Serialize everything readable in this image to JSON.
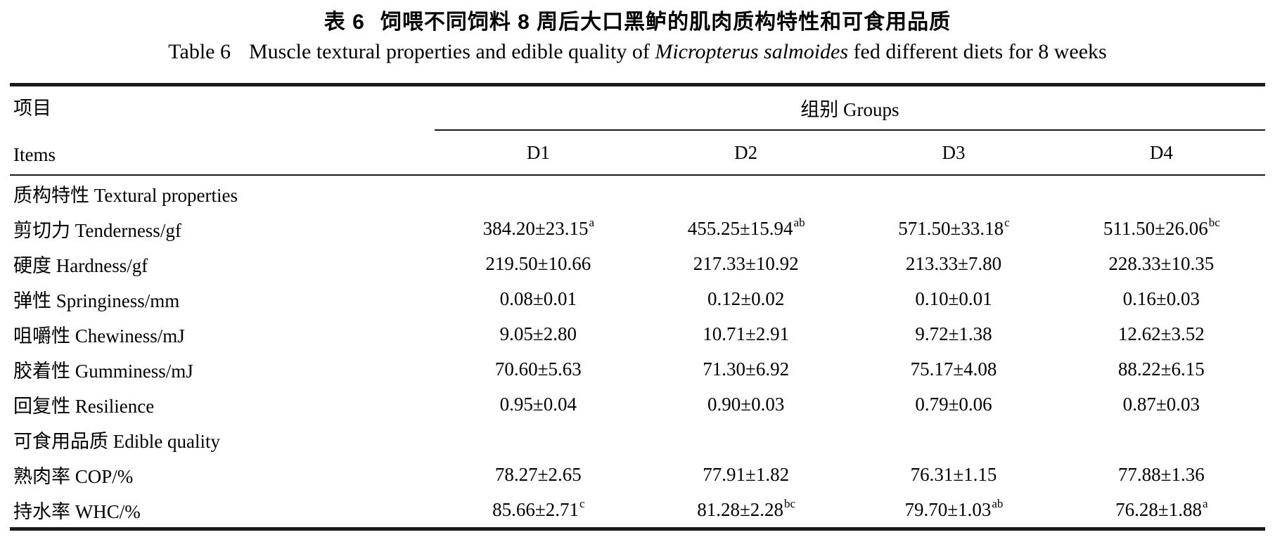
{
  "page": {
    "background_color": "#ffffff",
    "text_color": "#000000",
    "rule_color": "#1b1b1b"
  },
  "title": {
    "zh_label": "表 6",
    "zh_text": "饲喂不同饲料 8 周后大口黑鲈的肌肉质构特性和可食用品质",
    "en_label": "Table 6",
    "en_before_species": "Muscle textural properties and edible quality of ",
    "en_species": "Micropterus salmoides",
    "en_after_species": " fed different diets for 8 weeks"
  },
  "table": {
    "items_header_zh": "项目",
    "items_header_en": "Items",
    "groups_header": "组别 Groups",
    "columns": [
      "D1",
      "D2",
      "D3",
      "D4"
    ],
    "rows": [
      {
        "type": "section",
        "label": "质构特性 Textural properties"
      },
      {
        "type": "data",
        "label": "剪切力 Tenderness/gf",
        "values": [
          {
            "v": "384.20±23.15",
            "s": "a"
          },
          {
            "v": "455.25±15.94",
            "s": "ab"
          },
          {
            "v": "571.50±33.18",
            "s": "c"
          },
          {
            "v": "511.50±26.06",
            "s": "bc"
          }
        ]
      },
      {
        "type": "data",
        "label": "硬度 Hardness/gf",
        "values": [
          {
            "v": "219.50±10.66",
            "s": ""
          },
          {
            "v": "217.33±10.92",
            "s": ""
          },
          {
            "v": "213.33±7.80",
            "s": ""
          },
          {
            "v": "228.33±10.35",
            "s": ""
          }
        ]
      },
      {
        "type": "data",
        "label": "弹性 Springiness/mm",
        "values": [
          {
            "v": "0.08±0.01",
            "s": ""
          },
          {
            "v": "0.12±0.02",
            "s": ""
          },
          {
            "v": "0.10±0.01",
            "s": ""
          },
          {
            "v": "0.16±0.03",
            "s": ""
          }
        ]
      },
      {
        "type": "data",
        "label": "咀嚼性 Chewiness/mJ",
        "values": [
          {
            "v": "9.05±2.80",
            "s": ""
          },
          {
            "v": "10.71±2.91",
            "s": ""
          },
          {
            "v": "9.72±1.38",
            "s": ""
          },
          {
            "v": "12.62±3.52",
            "s": ""
          }
        ]
      },
      {
        "type": "data",
        "label": "胶着性 Gumminess/mJ",
        "values": [
          {
            "v": "70.60±5.63",
            "s": ""
          },
          {
            "v": "71.30±6.92",
            "s": ""
          },
          {
            "v": "75.17±4.08",
            "s": ""
          },
          {
            "v": "88.22±6.15",
            "s": ""
          }
        ]
      },
      {
        "type": "data",
        "label": "回复性 Resilience",
        "values": [
          {
            "v": "0.95±0.04",
            "s": ""
          },
          {
            "v": "0.90±0.03",
            "s": ""
          },
          {
            "v": "0.79±0.06",
            "s": ""
          },
          {
            "v": "0.87±0.03",
            "s": ""
          }
        ]
      },
      {
        "type": "section",
        "label": "可食用品质 Edible quality"
      },
      {
        "type": "data",
        "label": "熟肉率 COP/%",
        "values": [
          {
            "v": "78.27±2.65",
            "s": ""
          },
          {
            "v": "77.91±1.82",
            "s": ""
          },
          {
            "v": "76.31±1.15",
            "s": ""
          },
          {
            "v": "77.88±1.36",
            "s": ""
          }
        ]
      },
      {
        "type": "data",
        "label": "持水率 WHC/%",
        "values": [
          {
            "v": "85.66±2.71",
            "s": "c"
          },
          {
            "v": "81.28±2.28",
            "s": "bc"
          },
          {
            "v": "79.70±1.03",
            "s": "ab"
          },
          {
            "v": "76.28±1.88",
            "s": "a"
          }
        ]
      }
    ]
  }
}
